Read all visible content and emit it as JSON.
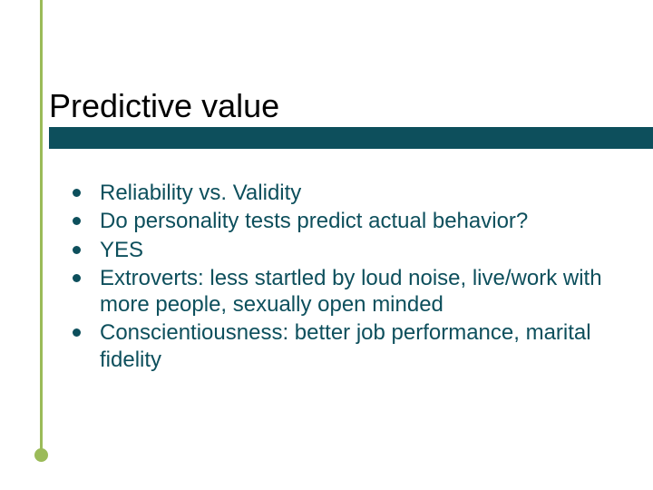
{
  "slide": {
    "title": "Predictive value",
    "title_color": "#000000",
    "title_fontsize": 36,
    "underline_color": "#0d4f5c",
    "accent_color": "#9bbb59",
    "background_color": "#ffffff",
    "bullets": {
      "color": "#0d4f5c",
      "fontsize": 24,
      "marker_color": "#0d4f5c",
      "items": [
        "Reliability vs. Validity",
        "Do personality tests predict actual behavior?",
        "YES",
        "Extroverts: less startled by loud noise, live/work with more people, sexually open minded",
        "Conscientiousness: better job performance, marital fidelity"
      ]
    }
  }
}
